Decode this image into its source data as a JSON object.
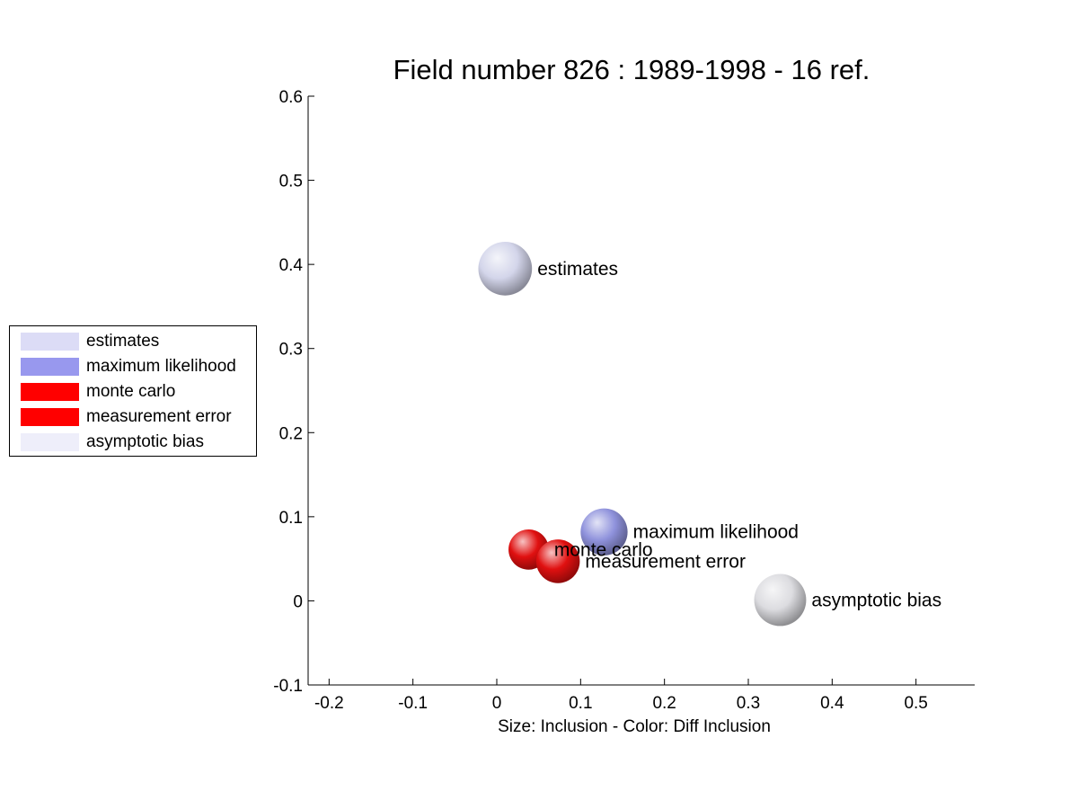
{
  "chart_data": {
    "type": "scatter",
    "title": "Field number 826 : 1989-1998  - 16 ref.",
    "xlabel": "Size: Inclusion - Color: Diff Inclusion",
    "ylabel": "",
    "xlim": [
      -0.225,
      0.57
    ],
    "ylim": [
      -0.1,
      0.6
    ],
    "xticks": [
      -0.2,
      -0.1,
      0,
      0.1,
      0.2,
      0.3,
      0.4,
      0.5
    ],
    "xtick_labels": [
      "-0.2",
      "-0.1",
      "0",
      "0.1",
      "0.2",
      "0.3",
      "0.4",
      "0.5"
    ],
    "yticks": [
      -0.1,
      0,
      0.1,
      0.2,
      0.3,
      0.4,
      0.5,
      0.6
    ],
    "ytick_labels": [
      "-0.1",
      "0",
      "0.1",
      "0.2",
      "0.3",
      "0.4",
      "0.5",
      "0.6"
    ],
    "grid": false,
    "legend_position": "left",
    "points": [
      {
        "label": "estimates",
        "x": 0.01,
        "y": 0.395,
        "size": 0.032,
        "color": "#d3d5ea"
      },
      {
        "label": "maximum likelihood",
        "x": 0.128,
        "y": 0.082,
        "size": 0.028,
        "color": "#8f92dc"
      },
      {
        "label": "monte carlo",
        "x": 0.038,
        "y": 0.061,
        "size": 0.024,
        "color": "#e01010"
      },
      {
        "label": "measurement error",
        "x": 0.073,
        "y": 0.047,
        "size": 0.026,
        "color": "#e01010"
      },
      {
        "label": "asymptotic bias",
        "x": 0.338,
        "y": 0.001,
        "size": 0.031,
        "color": "#dcdce0"
      }
    ]
  },
  "legend": {
    "items": [
      {
        "label": "estimates",
        "color": "#dcdcf6"
      },
      {
        "label": "maximum likelihood",
        "color": "#9898ee"
      },
      {
        "label": "monte carlo",
        "color": "#ff0000"
      },
      {
        "label": "measurement error",
        "color": "#ff0000"
      },
      {
        "label": "asymptotic bias",
        "color": "#eeeefa"
      }
    ]
  }
}
